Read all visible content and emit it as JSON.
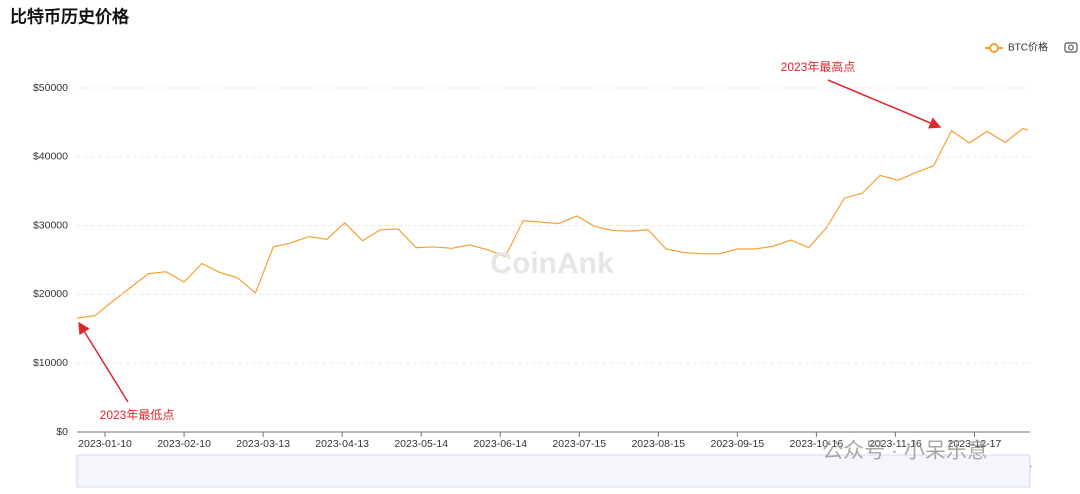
{
  "chart_data": {
    "type": "line",
    "title": "比特币历史价格",
    "x": [
      "2022-12-30",
      "2023-01-06",
      "2023-01-13",
      "2023-01-20",
      "2023-01-27",
      "2023-02-03",
      "2023-02-10",
      "2023-02-17",
      "2023-02-24",
      "2023-03-03",
      "2023-03-10",
      "2023-03-17",
      "2023-03-24",
      "2023-03-31",
      "2023-04-07",
      "2023-04-14",
      "2023-04-21",
      "2023-04-28",
      "2023-05-05",
      "2023-05-12",
      "2023-05-19",
      "2023-05-26",
      "2023-06-02",
      "2023-06-09",
      "2023-06-16",
      "2023-06-23",
      "2023-06-30",
      "2023-07-07",
      "2023-07-14",
      "2023-07-21",
      "2023-07-28",
      "2023-08-04",
      "2023-08-11",
      "2023-08-18",
      "2023-08-25",
      "2023-09-01",
      "2023-09-08",
      "2023-09-15",
      "2023-09-22",
      "2023-09-29",
      "2023-10-06",
      "2023-10-13",
      "2023-10-20",
      "2023-10-27",
      "2023-11-03",
      "2023-11-10",
      "2023-11-17",
      "2023-11-24",
      "2023-12-01",
      "2023-12-08",
      "2023-12-15",
      "2023-12-22",
      "2023-12-29",
      "2024-01-05",
      "2024-01-07"
    ],
    "series": [
      {
        "name": "BTC价格",
        "color": "#f5a033",
        "values": [
          16570,
          16900,
          19000,
          21000,
          23000,
          23300,
          21800,
          24500,
          23200,
          22400,
          20200,
          26900,
          27500,
          28400,
          28000,
          30400,
          27800,
          29400,
          29500,
          26800,
          26900,
          26700,
          27200,
          26500,
          25500,
          30700,
          30500,
          30300,
          31400,
          29900,
          29300,
          29200,
          29400,
          26600,
          26100,
          25900,
          25900,
          26600,
          26600,
          27000,
          27900,
          26800,
          29700,
          34000,
          34700,
          37300,
          36600,
          37700,
          38700,
          43800,
          42000,
          43700,
          42100,
          44100,
          43900
        ]
      }
    ],
    "xlim": [
      "2022-12-30",
      "2024-01-07"
    ],
    "xticks": [
      "2023-01-10",
      "2023-02-10",
      "2023-03-13",
      "2023-04-13",
      "2023-05-14",
      "2023-06-14",
      "2023-07-15",
      "2023-08-15",
      "2023-09-15",
      "2023-10-16",
      "2023-11-16",
      "2023-12-17"
    ],
    "ylim": [
      0,
      50000
    ],
    "yticks": [
      {
        "value": 0,
        "label": "$0"
      },
      {
        "value": 10000,
        "label": "$10000"
      },
      {
        "value": 20000,
        "label": "$20000"
      },
      {
        "value": 30000,
        "label": "$30000"
      },
      {
        "value": 40000,
        "label": "$40000"
      },
      {
        "value": 50000,
        "label": "$50000"
      }
    ],
    "grid": true,
    "annotations": [
      "2023年最高点",
      "2023年最低点"
    ],
    "watermark": "CoinAnk",
    "overlay_watermark": "公众号 · 小呆乐意",
    "zoom_range": [
      "2022-12-30",
      "2024-01-07"
    ]
  }
}
